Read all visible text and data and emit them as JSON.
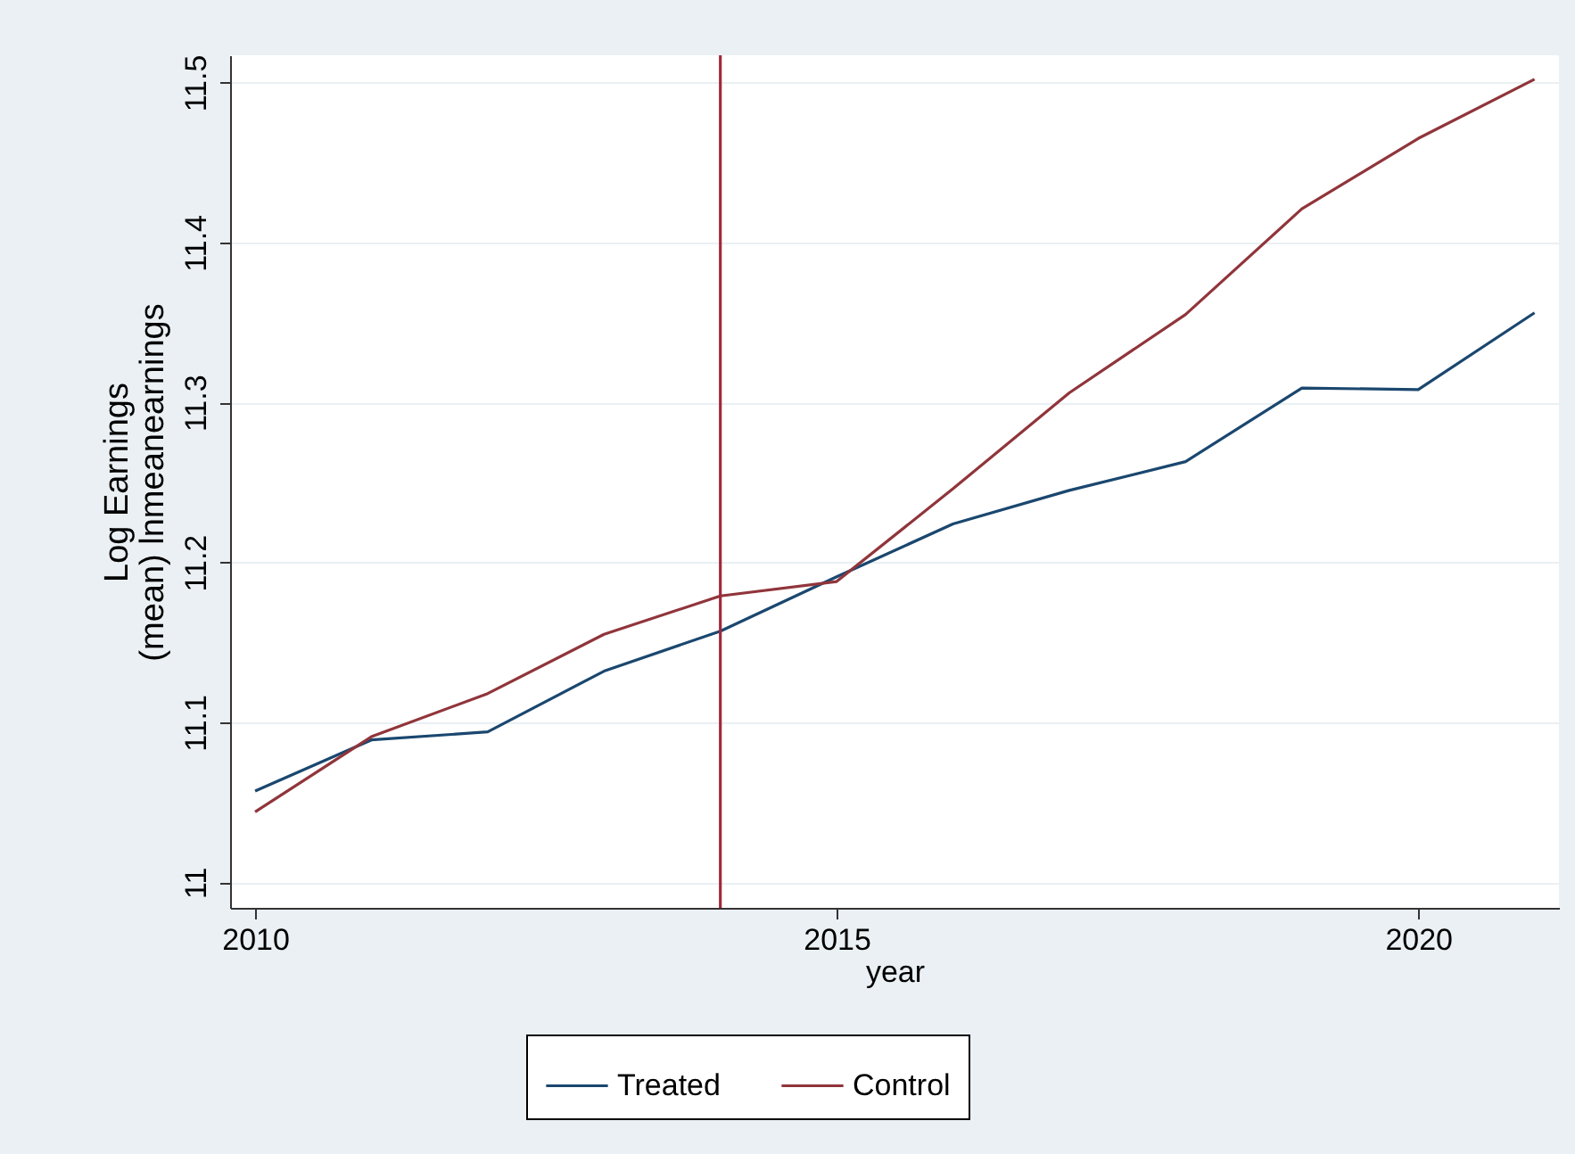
{
  "chart_data": {
    "type": "line",
    "xlabel": "year",
    "ylabel": "Log Earnings\n(mean) lnmeanearnings",
    "x": [
      2010,
      2011,
      2012,
      2013,
      2014,
      2015,
      2016,
      2017,
      2018,
      2019,
      2020,
      2021
    ],
    "series": [
      {
        "name": "Treated",
        "color": "#1a476f",
        "values": [
          11.057,
          11.089,
          11.094,
          11.132,
          11.157,
          11.191,
          11.224,
          11.245,
          11.263,
          11.309,
          11.308,
          11.356
        ]
      },
      {
        "name": "Control",
        "color": "#90353b",
        "values": [
          11.044,
          11.091,
          11.118,
          11.155,
          11.179,
          11.188,
          11.246,
          11.306,
          11.355,
          11.421,
          11.465,
          11.502
        ]
      }
    ],
    "xlim": [
      2009.785,
      2021.21
    ],
    "xticks": [
      2010,
      2015,
      2020
    ],
    "ylim": [
      10.984,
      11.517
    ],
    "yticks": [
      {
        "value": 11,
        "label": "11"
      },
      11.1,
      11.2,
      11.3,
      11.4,
      11.5
    ],
    "ref_lines": [
      {
        "axis": "x",
        "value": 2014,
        "color": "#a0283c"
      }
    ],
    "grid": "y",
    "legend": "bottom",
    "line_style": "solid"
  }
}
